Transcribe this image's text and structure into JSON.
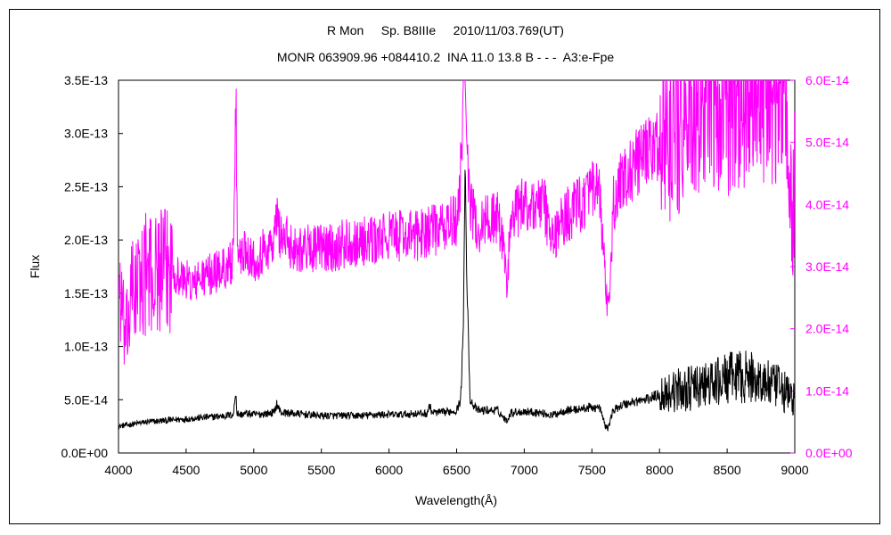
{
  "chart_data": {
    "type": "line",
    "title": "R Mon     Sp. B8IIIe     2010/11/03.769(UT)",
    "subtitle": "MONR 063909.96 +084410.2  INA 11.0 13.8 B - - -  A3:e-Fpe",
    "xlabel": "Wavelength(Å)",
    "ylabel": "Flux",
    "xlim": [
      4000,
      9000
    ],
    "ylim": [
      0,
      3.5e-13
    ],
    "y2lim": [
      0,
      6e-14
    ],
    "x_ticks": [
      "4000",
      "4500",
      "5000",
      "5500",
      "6000",
      "6500",
      "7000",
      "7500",
      "8000",
      "8500",
      "9000"
    ],
    "y_ticks": [
      "0.0E+00",
      "5.0E-14",
      "1.0E-13",
      "1.5E-13",
      "2.0E-13",
      "2.5E-13",
      "3.0E-13",
      "3.5E-13"
    ],
    "y2_ticks": [
      "0.0E+00",
      "1.0E-14",
      "2.0E-14",
      "3.0E-14",
      "4.0E-14",
      "5.0E-14",
      "6.0E-14"
    ],
    "grid": false,
    "colors": {
      "primary": "#000000",
      "secondary": "#ff00ff"
    },
    "series": [
      {
        "axis": "left",
        "color": "#000000",
        "x": [
          4000,
          4050,
          4100,
          4200,
          4300,
          4400,
          4500,
          4600,
          4700,
          4800,
          4850,
          4868,
          4875,
          4900,
          4950,
          5000,
          5100,
          5150,
          5170,
          5200,
          5300,
          5400,
          5500,
          5600,
          5700,
          5800,
          5900,
          6000,
          6100,
          6200,
          6280,
          6300,
          6320,
          6400,
          6450,
          6500,
          6530,
          6550,
          6563,
          6575,
          6600,
          6650,
          6700,
          6800,
          6870,
          6900,
          7000,
          7100,
          7150,
          7200,
          7300,
          7400,
          7500,
          7560,
          7600,
          7620,
          7650,
          7700,
          7800,
          7900,
          8000,
          8100,
          8200,
          8300,
          8400,
          8500,
          8600,
          8700,
          8800,
          8900,
          9000
        ],
        "y": [
          2.5e-14,
          2.6e-14,
          2.7e-14,
          2.9e-14,
          3e-14,
          3.1e-14,
          3.2e-14,
          3.3e-14,
          3.4e-14,
          3.5e-14,
          3.6e-14,
          6e-14,
          3.7e-14,
          3.6e-14,
          3.7e-14,
          3.6e-14,
          3.7e-14,
          3.8e-14,
          4.6e-14,
          3.8e-14,
          3.7e-14,
          3.6e-14,
          3.5e-14,
          3.5e-14,
          3.5e-14,
          3.5e-14,
          3.6e-14,
          3.6e-14,
          3.6e-14,
          3.7e-14,
          3.7e-14,
          4.4e-14,
          3.8e-14,
          3.8e-14,
          3.9e-14,
          4e-14,
          5e-14,
          1.2e-13,
          2.78e-13,
          1.6e-13,
          5e-14,
          4e-14,
          4e-14,
          4e-14,
          3e-14,
          3.8e-14,
          3.9e-14,
          3.8e-14,
          3.7e-14,
          3.5e-14,
          4e-14,
          4.1e-14,
          4.3e-14,
          4.2e-14,
          2.5e-14,
          2.3e-14,
          3.8e-14,
          4.4e-14,
          4.8e-14,
          5e-14,
          5.5e-14,
          5.8e-14,
          6e-14,
          6.2e-14,
          6.5e-14,
          7e-14,
          7.2e-14,
          7e-14,
          6.5e-14,
          6e-14,
          5e-14
        ]
      },
      {
        "axis": "right",
        "color": "#ff00ff",
        "x": [
          4000,
          4020,
          4050,
          4080,
          4100,
          4150,
          4200,
          4250,
          4300,
          4350,
          4400,
          4450,
          4500,
          4550,
          4600,
          4700,
          4800,
          4850,
          4860,
          4865,
          4868,
          4872,
          4880,
          4900,
          4950,
          5000,
          5100,
          5150,
          5170,
          5200,
          5250,
          5300,
          5400,
          5500,
          5600,
          5700,
          5800,
          5900,
          6000,
          6100,
          6200,
          6300,
          6400,
          6450,
          6500,
          6530,
          6550,
          6563,
          6575,
          6600,
          6650,
          6700,
          6750,
          6800,
          6850,
          6870,
          6900,
          6950,
          7000,
          7100,
          7150,
          7200,
          7300,
          7400,
          7500,
          7550,
          7580,
          7600,
          7620,
          7640,
          7660,
          7700,
          7750,
          7800,
          7900,
          8000,
          8100,
          8200,
          8300,
          8400,
          8500,
          8600,
          8700,
          8750,
          8800,
          8900,
          8950,
          8980,
          9000
        ],
        "y": [
          2.9e-14,
          2.4e-14,
          1.8e-14,
          2.2e-14,
          2.6e-14,
          2.7e-14,
          2.9e-14,
          2.8e-14,
          3e-14,
          2.9e-14,
          3e-14,
          2.8e-14,
          2.8e-14,
          2.7e-14,
          2.8e-14,
          2.9e-14,
          3e-14,
          3.1e-14,
          4.2e-14,
          5.6e-14,
          6e-14,
          4.6e-14,
          3.3e-14,
          3.2e-14,
          3.3e-14,
          3.1e-14,
          3.3e-14,
          3.4e-14,
          3.8e-14,
          3.5e-14,
          3.4e-14,
          3.3e-14,
          3.3e-14,
          3.3e-14,
          3.3e-14,
          3.4e-14,
          3.4e-14,
          3.4e-14,
          3.5e-14,
          3.5e-14,
          3.5e-14,
          3.6e-14,
          3.6e-14,
          3.7e-14,
          3.7e-14,
          4.5e-14,
          6e-14,
          6e-14,
          5e-14,
          4e-14,
          3.6e-14,
          3.7e-14,
          3.8e-14,
          3.8e-14,
          3.3e-14,
          2.7e-14,
          3.7e-14,
          3.9e-14,
          4e-14,
          4e-14,
          4e-14,
          3.4e-14,
          3.8e-14,
          4e-14,
          4.2e-14,
          4.2e-14,
          3.5e-14,
          2.7e-14,
          2.2e-14,
          2.9e-14,
          4e-14,
          4.3e-14,
          4.4e-14,
          4.6e-14,
          4.8e-14,
          5e-14,
          5.2e-14,
          5.4e-14,
          5.5e-14,
          5.6e-14,
          5.7e-14,
          5.8e-14,
          5.9e-14,
          5.9e-14,
          5.8e-14,
          5.6e-14,
          5.2e-14,
          3.4e-14,
          4.4e-14
        ]
      }
    ]
  }
}
